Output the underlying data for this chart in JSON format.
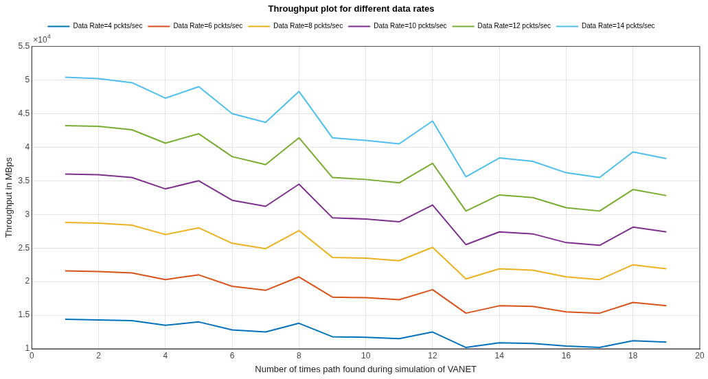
{
  "chart_data": {
    "type": "line",
    "title": "Throughput plot for different data rates",
    "xlabel": "Number of times path found during simulation of VANET",
    "ylabel": "Throughput in MBps",
    "x": [
      1,
      2,
      3,
      4,
      5,
      6,
      7,
      8,
      9,
      10,
      11,
      12,
      13,
      14,
      15,
      16,
      17,
      18,
      19
    ],
    "series": [
      {
        "name": "Data Rate=4 pckts/sec",
        "color": "#0072bd",
        "values": [
          1.44,
          1.43,
          1.42,
          1.35,
          1.4,
          1.28,
          1.25,
          1.38,
          1.18,
          1.17,
          1.15,
          1.25,
          1.02,
          1.09,
          1.08,
          1.04,
          1.02,
          1.12,
          1.1
        ]
      },
      {
        "name": "Data Rate=6 pckts/sec",
        "color": "#d95319",
        "values": [
          2.16,
          2.15,
          2.13,
          2.03,
          2.1,
          1.93,
          1.87,
          2.07,
          1.77,
          1.76,
          1.73,
          1.88,
          1.53,
          1.64,
          1.63,
          1.55,
          1.53,
          1.69,
          1.64
        ]
      },
      {
        "name": "Data Rate=8 pckts/sec",
        "color": "#edb120",
        "values": [
          2.88,
          2.87,
          2.84,
          2.7,
          2.8,
          2.57,
          2.49,
          2.76,
          2.36,
          2.35,
          2.31,
          2.51,
          2.04,
          2.19,
          2.17,
          2.07,
          2.03,
          2.25,
          2.19
        ]
      },
      {
        "name": "Data Rate=10 pckts/sec",
        "color": "#7e2f8e",
        "values": [
          3.6,
          3.59,
          3.55,
          3.38,
          3.5,
          3.21,
          3.12,
          3.45,
          2.95,
          2.93,
          2.89,
          3.14,
          2.55,
          2.74,
          2.71,
          2.58,
          2.54,
          2.81,
          2.74
        ]
      },
      {
        "name": "Data Rate=12 pckts/sec",
        "color": "#77ac30",
        "values": [
          4.32,
          4.31,
          4.26,
          4.06,
          4.2,
          3.86,
          3.74,
          4.14,
          3.55,
          3.52,
          3.47,
          3.76,
          3.05,
          3.29,
          3.25,
          3.1,
          3.05,
          3.37,
          3.28
        ]
      },
      {
        "name": "Data Rate=14 pckts/sec",
        "color": "#4dbeee",
        "values": [
          5.04,
          5.02,
          4.96,
          4.73,
          4.9,
          4.5,
          4.37,
          4.83,
          4.14,
          4.1,
          4.05,
          4.39,
          3.56,
          3.84,
          3.79,
          3.62,
          3.55,
          3.93,
          3.83
        ]
      }
    ],
    "xlim": [
      0,
      20
    ],
    "xticks": [
      0,
      2,
      4,
      6,
      8,
      10,
      12,
      14,
      16,
      18,
      20
    ],
    "ylim": [
      1,
      5.5
    ],
    "yticks": [
      1,
      1.5,
      2,
      2.5,
      3,
      3.5,
      4,
      4.5,
      5,
      5.5
    ],
    "annotations": [
      "×10$^{4}$"
    ],
    "grid": true,
    "legend": "top",
    "marker": "none",
    "line_style": "solid"
  }
}
